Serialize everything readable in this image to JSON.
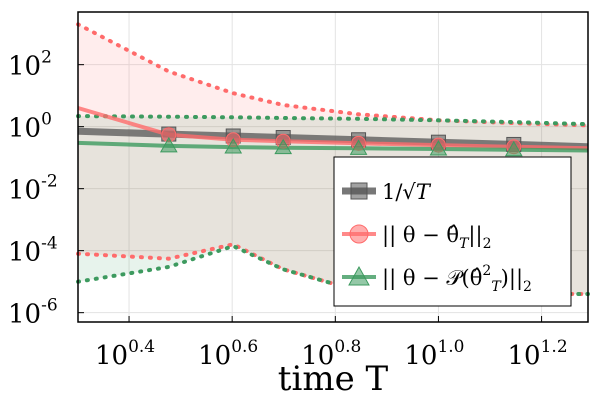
{
  "chart_data": {
    "type": "line",
    "xlabel": "time T",
    "xscale": "log",
    "yscale": "log",
    "xlim": [
      2.0,
      19.5
    ],
    "ylim": [
      5e-07,
      5000
    ],
    "grid": true,
    "legend_position": "bottom-right",
    "x_ticks": [
      {
        "value": 2.512,
        "base": "10",
        "exp": "0.4"
      },
      {
        "value": 3.981,
        "base": "10",
        "exp": "0.6"
      },
      {
        "value": 6.31,
        "base": "10",
        "exp": "0.8"
      },
      {
        "value": 10.0,
        "base": "10",
        "exp": "1.0"
      },
      {
        "value": 15.849,
        "base": "10",
        "exp": "1.2"
      }
    ],
    "y_ticks": [
      {
        "value": 1e-06,
        "base": "10",
        "exp": "-6"
      },
      {
        "value": 0.0001,
        "base": "10",
        "exp": "-4"
      },
      {
        "value": 0.01,
        "base": "10",
        "exp": "-2"
      },
      {
        "value": 1,
        "base": "10",
        "exp": "0"
      },
      {
        "value": 100,
        "base": "10",
        "exp": "2"
      }
    ],
    "series": [
      {
        "name": "1/√T",
        "color": "#555555",
        "marker": "square",
        "x": [
          2,
          3,
          4,
          5,
          7,
          10,
          14,
          19.5
        ],
        "y": [
          0.707,
          0.577,
          0.5,
          0.447,
          0.378,
          0.316,
          0.267,
          0.226
        ]
      },
      {
        "name": "||θ − θ̂_T||₂",
        "color": "#ff6b6b",
        "marker": "circle",
        "x": [
          2,
          3,
          4,
          5,
          7,
          10,
          14,
          19.5
        ],
        "y": [
          4.0,
          0.55,
          0.38,
          0.34,
          0.29,
          0.255,
          0.225,
          0.2
        ],
        "band_upper": [
          2000,
          60,
          12,
          5,
          2.5,
          1.6,
          1.3,
          1.1
        ],
        "band_lower": [
          8e-05,
          5.5e-05,
          0.00016,
          2.5e-05,
          5e-06,
          4e-06,
          4e-06,
          4e-06
        ]
      },
      {
        "name": "||θ − 𝒫(θ̂_T)||₂",
        "color": "#3d9a5f",
        "marker": "triangle",
        "x": [
          2,
          3,
          4,
          5,
          7,
          10,
          14,
          19.5
        ],
        "y": [
          0.3,
          0.24,
          0.22,
          0.21,
          0.2,
          0.19,
          0.18,
          0.17
        ],
        "band_upper": [
          2.2,
          2.1,
          2.0,
          1.9,
          1.8,
          1.6,
          1.4,
          1.2
        ],
        "band_lower": [
          1e-05,
          3e-05,
          0.00014,
          2.5e-05,
          5e-06,
          4e-06,
          4e-06,
          4e-06
        ]
      }
    ]
  },
  "legend": {
    "items": [
      {
        "id": "invsqrt",
        "prefix": "1/√",
        "var": "T",
        "sub": "",
        "sup": ""
      },
      {
        "id": "err",
        "prefix": "|| θ − θ̂",
        "var": "",
        "sub": "T",
        "sup": "",
        "suffix": "||",
        "suffix_sub": "2"
      },
      {
        "id": "proj",
        "prefix": "|| θ − 𝒫(θ̂",
        "var": "",
        "sub": "T",
        "sup": "2",
        "suffix": ")||",
        "suffix_sub": "2"
      }
    ]
  }
}
